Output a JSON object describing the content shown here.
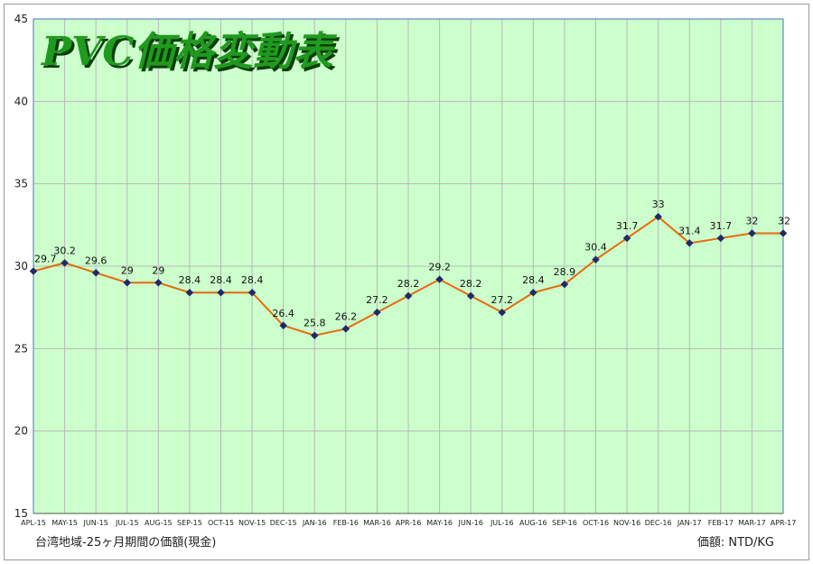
{
  "chart_data": {
    "type": "line",
    "title": "PVC価格変動表",
    "categories": [
      "APL-15",
      "MAY-15",
      "JUN-15",
      "JUL-15",
      "AUG-15",
      "SEP-15",
      "OCT-15",
      "NOV-15",
      "DEC-15",
      "JAN-16",
      "FEB-16",
      "MAR-16",
      "APR-16",
      "MAY-16",
      "JUN-16",
      "JUL-16",
      "AUG-16",
      "SEP-16",
      "OCT-16",
      "NOV-16",
      "DEC-16",
      "JAN-17",
      "FEB-17",
      "MAR-17",
      "APR-17"
    ],
    "series": [
      {
        "values": [
          29.7,
          30.2,
          29.6,
          29,
          29,
          28.4,
          28.4,
          28.4,
          26.4,
          25.8,
          26.2,
          27.2,
          28.2,
          29.2,
          28.2,
          27.2,
          28.4,
          28.9,
          30.4,
          31.7,
          33,
          31.4,
          31.7,
          32,
          32
        ]
      }
    ],
    "data_labels": [
      "29.7",
      "30.2",
      "29.6",
      "29",
      "29",
      "28.4",
      "28.4",
      "28.4",
      "26.4",
      "25.8",
      "26.2",
      "27.2",
      "28.2",
      "29.2",
      "28.2",
      "27.2",
      "28.4",
      "28.9",
      "30.4",
      "31.7",
      "33",
      "31.4",
      "31.7",
      "32",
      "32"
    ],
    "y_ticks": [
      "15",
      "20",
      "25",
      "30",
      "35",
      "40",
      "45"
    ],
    "ylim": [
      15,
      45
    ],
    "grid": true,
    "colors": {
      "plot_bg": "#ccffcc",
      "line": "#e46c0a",
      "marker": "#1f2a6b",
      "grid": "#b8b8b8",
      "axis": "#4472c4"
    },
    "footer_left": "台湾地域-25ヶ月期間の価額(現金)",
    "footer_right": "価額: NTD/KG"
  }
}
